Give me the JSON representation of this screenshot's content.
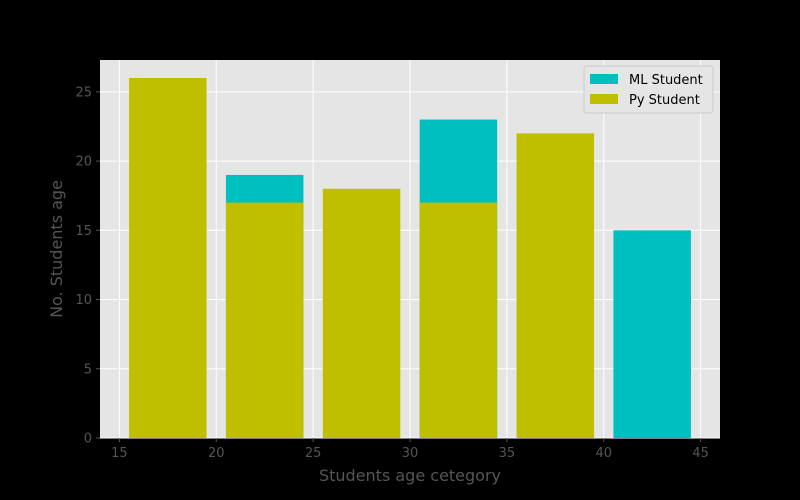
{
  "chart_data": {
    "type": "bar",
    "xlabel": "Students age cetegory",
    "ylabel": "No. Students age",
    "xlim": [
      14,
      46
    ],
    "ylim": [
      0,
      27.3
    ],
    "xticks": [
      15,
      20,
      25,
      30,
      35,
      40,
      45
    ],
    "yticks": [
      0,
      5,
      10,
      15,
      20,
      25
    ],
    "bar_width": 4,
    "grid": true,
    "legend_position": "top-right",
    "series": [
      {
        "name": "ML Student",
        "color": "#00bfbf",
        "x": [
          17.5,
          22.5,
          27.5,
          32.5,
          37.5,
          42.5
        ],
        "values": [
          0,
          19,
          0,
          23,
          0,
          15
        ]
      },
      {
        "name": "Py Student",
        "color": "#bfbf00",
        "x": [
          17.5,
          22.5,
          27.5,
          32.5,
          37.5,
          42.5
        ],
        "values": [
          26,
          17,
          18,
          17,
          22,
          0
        ]
      }
    ]
  }
}
